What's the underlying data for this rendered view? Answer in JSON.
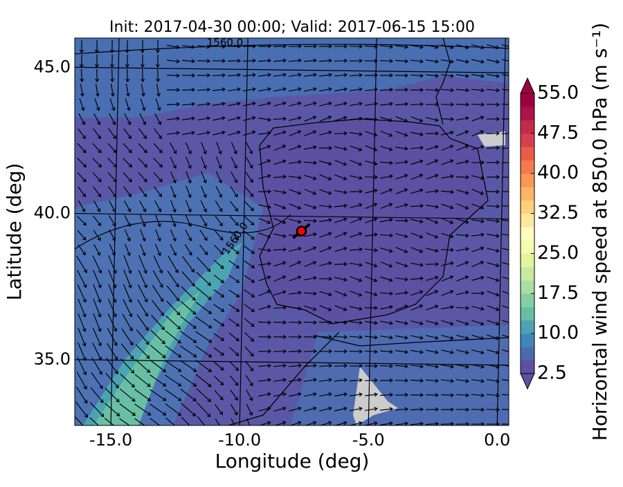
{
  "chart_data": {
    "type": "map",
    "title": "Init: 2017-04-30 00:00; Valid: 2017-06-15 15:00",
    "x_label": "Longitude (deg)",
    "y_label": "Latitude (deg)",
    "xlim": [
      -16.4,
      0.45
    ],
    "ylim": [
      32.75,
      46.0
    ],
    "xticks": [
      {
        "value": -15,
        "label": "-15.0"
      },
      {
        "value": -10,
        "label": "-10.0"
      },
      {
        "value": -5,
        "label": "-5.0"
      },
      {
        "value": 0,
        "label": "0.0"
      }
    ],
    "yticks": [
      {
        "value": 35,
        "label": "35.0"
      },
      {
        "value": 40,
        "label": "40.0"
      },
      {
        "value": 45,
        "label": "45.0"
      }
    ],
    "grid": true,
    "contour_labels": [
      "1560.0",
      "1560.0"
    ],
    "site": {
      "lon": -7.6,
      "lat": 39.4,
      "color": "#ff0000"
    },
    "colorbar": {
      "label": "Horizontal wind speed at 850.0 hPa (m s⁻¹)",
      "lim": [
        2.5,
        55
      ],
      "levels_step": 2.5,
      "ticks": [
        {
          "value": 2.5,
          "label": "2.5"
        },
        {
          "value": 10,
          "label": "10.0"
        },
        {
          "value": 17.5,
          "label": "17.5"
        },
        {
          "value": 25,
          "label": "25.0"
        },
        {
          "value": 32.5,
          "label": "32.5"
        },
        {
          "value": 40,
          "label": "40.0"
        },
        {
          "value": 47.5,
          "label": "47.5"
        },
        {
          "value": 55,
          "label": "55.0"
        }
      ],
      "colors": [
        "#5e4fa2",
        "#4f69ae",
        "#3f87ba",
        "#4ba4b1",
        "#66bfa5",
        "#86cfa5",
        "#a9dda2",
        "#c8e9a0",
        "#e3f49a",
        "#f5fbb1",
        "#fffebe",
        "#fee99a",
        "#fed07e",
        "#fdb466",
        "#fa9656",
        "#f47a4b",
        "#e75d45",
        "#d6404e",
        "#c22a4a",
        "#a91546",
        "#9e0142"
      ]
    }
  }
}
